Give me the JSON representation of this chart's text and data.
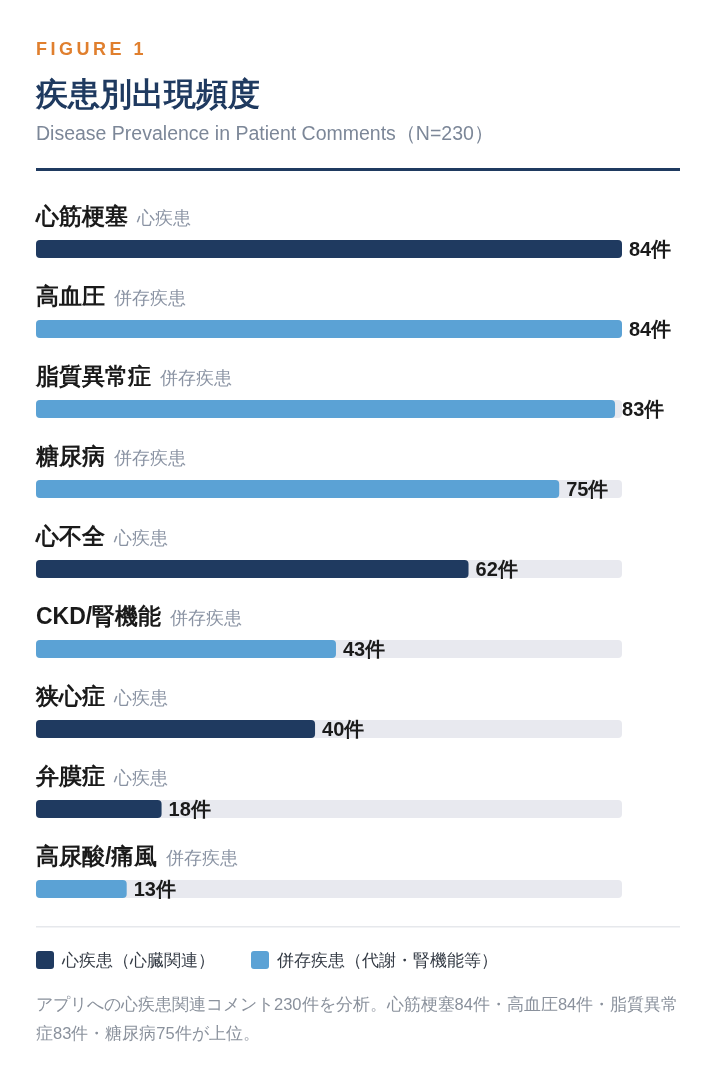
{
  "chart_data": {
    "type": "bar",
    "orientation": "horizontal",
    "title": "疾患別出現頻度",
    "subtitle": "Disease Prevalence in Patient Comments（N=230）",
    "categories": [
      "心筋梗塞",
      "高血圧",
      "脂質異常症",
      "糖尿病",
      "心不全",
      "CKD/腎機能",
      "狭心症",
      "弁膜症",
      "高尿酸/痛風"
    ],
    "series": [
      {
        "name": "心疾患（心臓関連）",
        "color": "#1f3a60",
        "values": [
          84,
          null,
          null,
          null,
          62,
          null,
          40,
          18,
          null
        ],
        "value_labels": [
          "84件",
          null,
          null,
          null,
          "62件",
          null,
          "40件",
          "18件",
          null
        ]
      },
      {
        "name": "併存疾患（代謝・腎機能等）",
        "color": "#5ba2d5",
        "values": [
          null,
          84,
          83,
          75,
          null,
          43,
          null,
          null,
          13
        ],
        "value_labels": [
          null,
          "84件",
          "83件",
          "75件",
          null,
          "43件",
          null,
          null,
          "13件"
        ]
      }
    ],
    "legend": "bottom",
    "annotations": [
      "FIGURE 1",
      "心疾患",
      "併存疾患",
      "併存疾患",
      "併存疾患",
      "心疾患",
      "併存疾患",
      "心疾患",
      "心疾患",
      "併存疾患",
      "アプリへの心疾患関連コメント230件を分析。心筋梗塞84件・高血圧84件・脂質異常症83件・糖尿病75件が上位。"
    ]
  }
}
